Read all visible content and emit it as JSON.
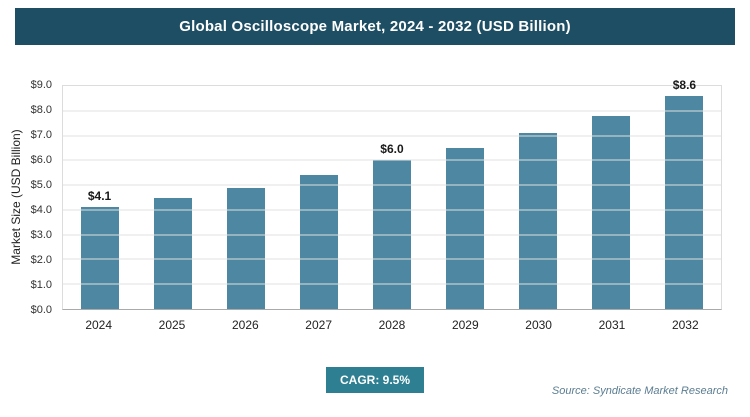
{
  "header": {
    "title": "Global Oscilloscope Market, 2024 - 2032 (USD Billion)"
  },
  "footer": {
    "cagr_label": "CAGR: 9.5%",
    "source": "Source: Syndicate Market Research"
  },
  "colors": {
    "header_bg": "#1e4e63",
    "bar": "#4d87a1",
    "badge_bg": "#2d7f91",
    "source_text": "#5b7d91"
  },
  "chart_data": {
    "type": "bar",
    "title": "Global Oscilloscope Market, 2024 - 2032 (USD Billion)",
    "categories": [
      "2024",
      "2025",
      "2026",
      "2027",
      "2028",
      "2029",
      "2030",
      "2031",
      "2032"
    ],
    "values": [
      4.1,
      4.5,
      4.9,
      5.4,
      6.0,
      6.5,
      7.1,
      7.8,
      8.6
    ],
    "value_labels": [
      "$4.1",
      null,
      null,
      null,
      "$6.0",
      null,
      null,
      null,
      "$8.6"
    ],
    "xlabel": "",
    "ylabel": "Market Size (USD Billion)",
    "ylim": [
      0,
      9
    ],
    "yticks": [
      "$0.0",
      "$1.0",
      "$2.0",
      "$3.0",
      "$4.0",
      "$5.0",
      "$6.0",
      "$7.0",
      "$8.0",
      "$9.0"
    ],
    "grid": true,
    "legend": false
  }
}
